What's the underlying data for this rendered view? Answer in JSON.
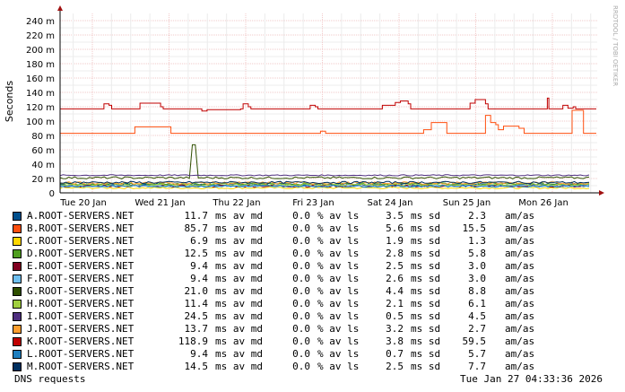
{
  "chart_data": {
    "type": "line",
    "ylabel": "Seconds",
    "watermark": "RRDTOOL / TOBI OETIKER",
    "ylim": [
      0,
      250
    ],
    "yticks": [
      {
        "v": 0,
        "label": "0"
      },
      {
        "v": 20,
        "label": "20 m"
      },
      {
        "v": 40,
        "label": "40 m"
      },
      {
        "v": 60,
        "label": "60 m"
      },
      {
        "v": 80,
        "label": "80 m"
      },
      {
        "v": 100,
        "label": "100 m"
      },
      {
        "v": 120,
        "label": "120 m"
      },
      {
        "v": 140,
        "label": "140 m"
      },
      {
        "v": 160,
        "label": "160 m"
      },
      {
        "v": 180,
        "label": "180 m"
      },
      {
        "v": 200,
        "label": "200 m"
      },
      {
        "v": 220,
        "label": "220 m"
      },
      {
        "v": 240,
        "label": "240 m"
      }
    ],
    "x_range": [
      "2026-01-20",
      "2026-01-27"
    ],
    "xticks": [
      "Tue 20 Jan",
      "Wed 21 Jan",
      "Thu 22 Jan",
      "Fri 23 Jan",
      "Sat 24 Jan",
      "Sun 25 Jan",
      "Mon 26 Jan"
    ],
    "grid": true,
    "series": [
      {
        "name": "A.ROOT-SERVERS.NET",
        "color": "#004f8c",
        "base": 11.7,
        "noise": 1.5
      },
      {
        "name": "B.ROOT-SERVERS.NET",
        "color": "#ff4f0f",
        "values": [
          [
            0,
            83
          ],
          [
            0.14,
            83
          ],
          [
            0.145,
            92
          ],
          [
            0.21,
            92
          ],
          [
            0.215,
            83
          ],
          [
            0.5,
            83
          ],
          [
            0.505,
            86
          ],
          [
            0.515,
            83
          ],
          [
            0.7,
            83
          ],
          [
            0.705,
            88
          ],
          [
            0.72,
            98
          ],
          [
            0.745,
            98
          ],
          [
            0.75,
            83
          ],
          [
            0.82,
            83
          ],
          [
            0.825,
            108
          ],
          [
            0.835,
            98
          ],
          [
            0.845,
            95
          ],
          [
            0.85,
            88
          ],
          [
            0.86,
            93
          ],
          [
            0.89,
            90
          ],
          [
            0.9,
            83
          ],
          [
            0.99,
            83
          ],
          [
            0.993,
            115
          ],
          [
            1.01,
            115
          ],
          [
            1.015,
            83
          ],
          [
            1.04,
            83
          ]
        ]
      },
      {
        "name": "C.ROOT-SERVERS.NET",
        "color": "#ffd700",
        "base": 6.9,
        "noise": 1.3
      },
      {
        "name": "D.ROOT-SERVERS.NET",
        "color": "#4f9e1f",
        "base": 12.5,
        "noise": 1.5
      },
      {
        "name": "E.ROOT-SERVERS.NET",
        "color": "#800020",
        "base": 9.4,
        "noise": 1.5
      },
      {
        "name": "F.ROOT-SERVERS.NET",
        "color": "#6fc0f0",
        "base": 9.4,
        "noise": 1.5
      },
      {
        "name": "G.ROOT-SERVERS.NET",
        "color": "#2f4f00",
        "base": 21.0,
        "noise": 1.5,
        "spike": [
          0.255,
          67
        ]
      },
      {
        "name": "H.ROOT-SERVERS.NET",
        "color": "#a0cf3f",
        "base": 11.4,
        "noise": 1.5
      },
      {
        "name": "I.ROOT-SERVERS.NET",
        "color": "#4f2f7f",
        "base": 24.5,
        "noise": 0.8
      },
      {
        "name": "J.ROOT-SERVERS.NET",
        "color": "#ff9f2f",
        "base": 13.7,
        "noise": 1.8
      },
      {
        "name": "K.ROOT-SERVERS.NET",
        "color": "#c00000",
        "values": [
          [
            0,
            117
          ],
          [
            0.08,
            117
          ],
          [
            0.085,
            124
          ],
          [
            0.095,
            122
          ],
          [
            0.1,
            117
          ],
          [
            0.15,
            117
          ],
          [
            0.155,
            125
          ],
          [
            0.19,
            125
          ],
          [
            0.195,
            120
          ],
          [
            0.2,
            117
          ],
          [
            0.27,
            117
          ],
          [
            0.275,
            114
          ],
          [
            0.285,
            116
          ],
          [
            0.35,
            117
          ],
          [
            0.355,
            124
          ],
          [
            0.365,
            120
          ],
          [
            0.37,
            117
          ],
          [
            0.48,
            117
          ],
          [
            0.485,
            122
          ],
          [
            0.495,
            120
          ],
          [
            0.5,
            117
          ],
          [
            0.6,
            117
          ],
          [
            0.62,
            117
          ],
          [
            0.625,
            122
          ],
          [
            0.65,
            126
          ],
          [
            0.66,
            128
          ],
          [
            0.675,
            124
          ],
          [
            0.68,
            117
          ],
          [
            0.79,
            117
          ],
          [
            0.795,
            125
          ],
          [
            0.805,
            130
          ],
          [
            0.82,
            130
          ],
          [
            0.825,
            124
          ],
          [
            0.83,
            117
          ],
          [
            0.94,
            117
          ],
          [
            0.945,
            132
          ],
          [
            0.948,
            117
          ],
          [
            0.97,
            117
          ],
          [
            0.975,
            122
          ],
          [
            0.985,
            118
          ],
          [
            0.995,
            120
          ],
          [
            1.0,
            117
          ],
          [
            1.04,
            117
          ]
        ]
      },
      {
        "name": "L.ROOT-SERVERS.NET",
        "color": "#1f7fbf",
        "base": 9.4,
        "noise": 1.5
      },
      {
        "name": "M.ROOT-SERVERS.NET",
        "color": "#002f5f",
        "base": 14.5,
        "noise": 1.5
      }
    ]
  },
  "legend": [
    {
      "name": "A.ROOT-SERVERS.NET",
      "color": "#004f8c",
      "av": "11.7",
      "ls": "0.0",
      "sd": "3.5",
      "am": "2.3"
    },
    {
      "name": "B.ROOT-SERVERS.NET",
      "color": "#ff4f0f",
      "av": "85.7",
      "ls": "0.0",
      "sd": "5.6",
      "am": "15.5"
    },
    {
      "name": "C.ROOT-SERVERS.NET",
      "color": "#ffd700",
      "av": "6.9",
      "ls": "0.0",
      "sd": "1.9",
      "am": "1.3"
    },
    {
      "name": "D.ROOT-SERVERS.NET",
      "color": "#4f9e1f",
      "av": "12.5",
      "ls": "0.0",
      "sd": "2.8",
      "am": "5.8"
    },
    {
      "name": "E.ROOT-SERVERS.NET",
      "color": "#800020",
      "av": "9.4",
      "ls": "0.0",
      "sd": "2.5",
      "am": "3.0"
    },
    {
      "name": "F.ROOT-SERVERS.NET",
      "color": "#6fc0f0",
      "av": "9.4",
      "ls": "0.0",
      "sd": "2.6",
      "am": "3.0"
    },
    {
      "name": "G.ROOT-SERVERS.NET",
      "color": "#2f4f00",
      "av": "21.0",
      "ls": "0.0",
      "sd": "4.4",
      "am": "8.8"
    },
    {
      "name": "H.ROOT-SERVERS.NET",
      "color": "#a0cf3f",
      "av": "11.4",
      "ls": "0.0",
      "sd": "2.1",
      "am": "6.1"
    },
    {
      "name": "I.ROOT-SERVERS.NET",
      "color": "#4f2f7f",
      "av": "24.5",
      "ls": "0.0",
      "sd": "0.5",
      "am": "4.5"
    },
    {
      "name": "J.ROOT-SERVERS.NET",
      "color": "#ff9f2f",
      "av": "13.7",
      "ls": "0.0",
      "sd": "3.2",
      "am": "2.7"
    },
    {
      "name": "K.ROOT-SERVERS.NET",
      "color": "#c00000",
      "av": "118.9",
      "ls": "0.0",
      "sd": "3.8",
      "am": "59.5"
    },
    {
      "name": "L.ROOT-SERVERS.NET",
      "color": "#1f7fbf",
      "av": "9.4",
      "ls": "0.0",
      "sd": "0.7",
      "am": "5.7"
    },
    {
      "name": "M.ROOT-SERVERS.NET",
      "color": "#002f5f",
      "av": "14.5",
      "ls": "0.0",
      "sd": "2.5",
      "am": "7.7"
    }
  ],
  "units": {
    "av": "ms av md",
    "ls": "% av ls",
    "sd": "ms sd",
    "am": "am/as"
  },
  "footer": {
    "left": "DNS requests",
    "right": "Tue Jan 27 04:33:36 2026"
  }
}
